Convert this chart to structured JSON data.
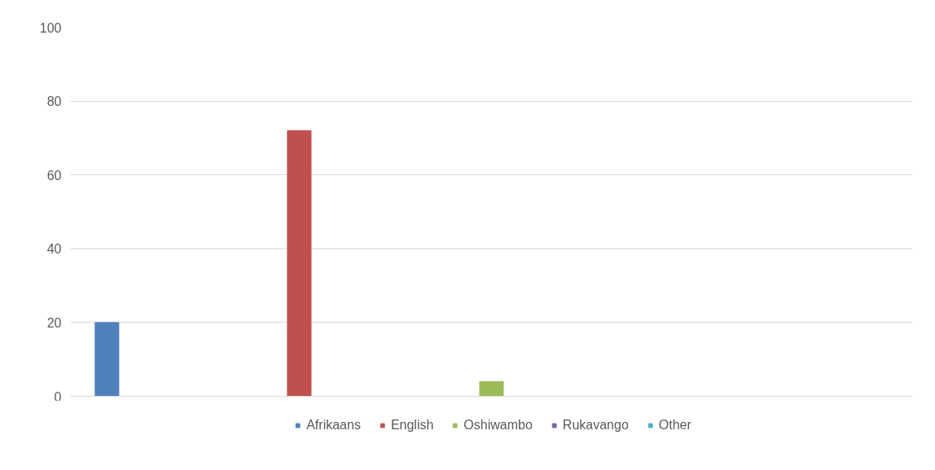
{
  "chart_data": {
    "type": "bar",
    "categories": [
      null,
      null,
      null,
      null,
      null
    ],
    "series": [
      {
        "name": "Afrikaans",
        "color": "#4f81bd",
        "values": [
          20,
          null,
          null,
          null,
          null
        ]
      },
      {
        "name": "English",
        "color": "#c0504d",
        "values": [
          null,
          72,
          null,
          null,
          null
        ]
      },
      {
        "name": "Oshiwambo",
        "color": "#9bbb59",
        "values": [
          null,
          null,
          4,
          null,
          null
        ]
      },
      {
        "name": "Rukavango",
        "color": "#8064a2",
        "values": [
          null,
          null,
          null,
          0,
          null
        ]
      },
      {
        "name": "Other",
        "color": "#4bacc6",
        "values": [
          null,
          null,
          null,
          null,
          0
        ]
      }
    ],
    "ylim": [
      0,
      100
    ],
    "yticks": [
      0,
      20,
      40,
      60,
      80,
      100
    ],
    "grid": "y",
    "legend": "bottom",
    "tick_labels": "y"
  }
}
